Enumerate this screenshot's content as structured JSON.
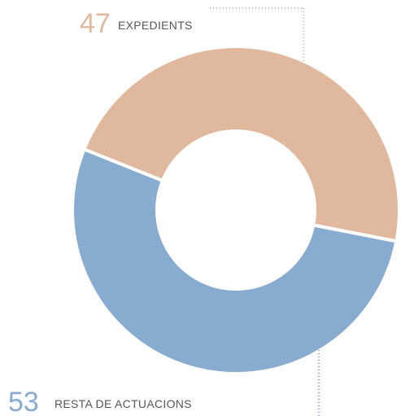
{
  "chart_data": {
    "type": "pie",
    "categories": [
      "EXPEDIENTS",
      "RESTA DE ACTUACIONS"
    ],
    "values": [
      47,
      53
    ],
    "colors": [
      "#e0b89e",
      "#88acd0"
    ],
    "donut": true
  }
}
